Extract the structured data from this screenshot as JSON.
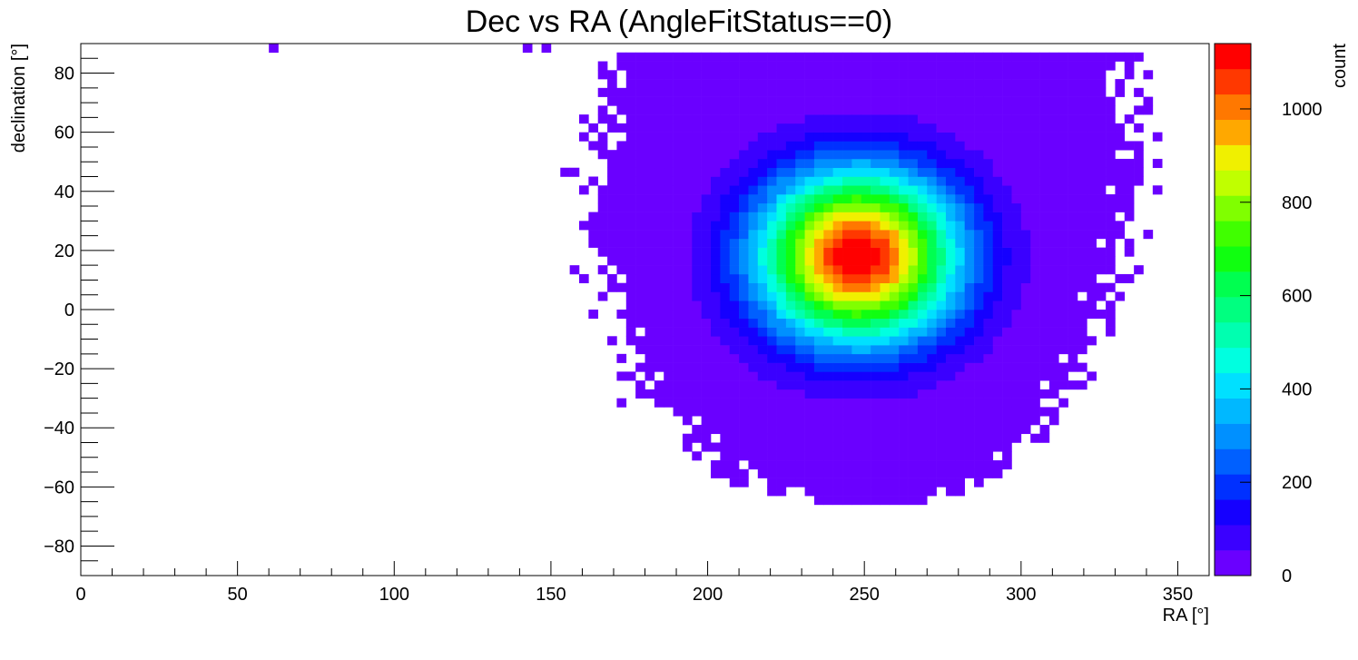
{
  "chart_data": {
    "type": "heatmap",
    "title": "Dec vs RA (AngleFitStatus==0)",
    "xlabel": "RA [°]",
    "ylabel": "declination [°]",
    "zlabel": "count",
    "xlim": [
      0,
      360
    ],
    "ylim": [
      -90,
      90
    ],
    "zlim": [
      0,
      1140
    ],
    "x_ticks": [
      0,
      50,
      100,
      150,
      200,
      250,
      300,
      350
    ],
    "y_ticks": [
      -80,
      -60,
      -40,
      -20,
      0,
      20,
      40,
      60,
      80
    ],
    "z_ticks": [
      0,
      200,
      400,
      600,
      800,
      1000
    ],
    "bin_size_deg": 3,
    "peak": {
      "ra": 248,
      "dec": 18,
      "count": 1140,
      "sigma_ra": 22,
      "sigma_dec": 20
    },
    "palette": [
      "#6a00ff",
      "#3a00ff",
      "#1500ff",
      "#0030ff",
      "#0060ff",
      "#0090ff",
      "#00b8ff",
      "#00e0ff",
      "#00ffe0",
      "#00ffb0",
      "#00ff80",
      "#00ff50",
      "#10ff10",
      "#40ff00",
      "#80ff00",
      "#c0ff00",
      "#f0f000",
      "#ffa800",
      "#ff7800",
      "#ff3800",
      "#ff0000"
    ],
    "footprint": [
      {
        "dec": 88,
        "ra_min": 172,
        "ra_max": 330
      },
      {
        "dec": 60,
        "ra_min": 168,
        "ra_max": 335
      },
      {
        "dec": 40,
        "ra_min": 163,
        "ra_max": 335
      },
      {
        "dec": 0,
        "ra_min": 172,
        "ra_max": 325
      },
      {
        "dec": -30,
        "ra_min": 182,
        "ra_max": 312
      },
      {
        "dec": -45,
        "ra_min": 200,
        "ra_max": 298
      },
      {
        "dec": -58,
        "ra_min": 215,
        "ra_max": 288
      },
      {
        "dec": -66,
        "ra_min": 248,
        "ra_max": 262
      }
    ]
  }
}
